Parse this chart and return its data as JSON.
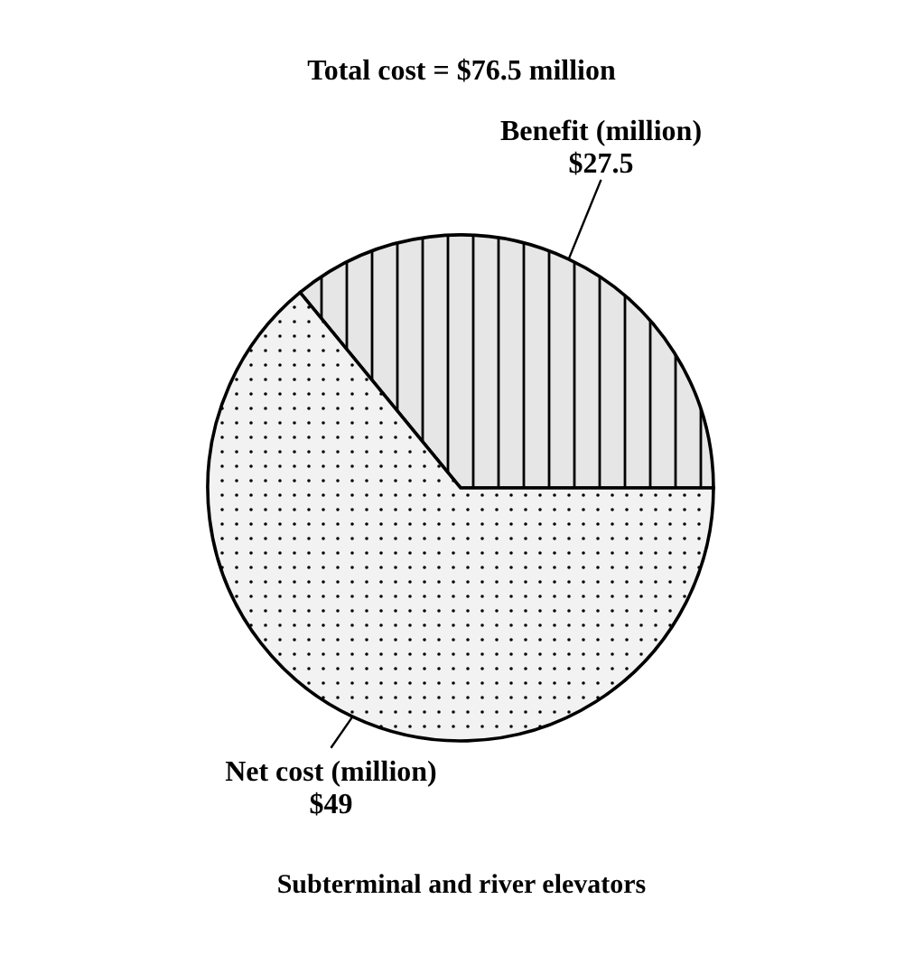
{
  "chart_data": {
    "type": "pie",
    "title": "Total cost = $76.5 million",
    "categories": [
      "Benefit (million)",
      "Net cost (million)"
    ],
    "values": [
      27.5,
      49
    ],
    "colors": [
      "#e6e6e6",
      "#f2f2f2"
    ],
    "value_labels": [
      "$27.5",
      "$49"
    ],
    "annotations": [
      "Subterminal and river elevators"
    ]
  }
}
